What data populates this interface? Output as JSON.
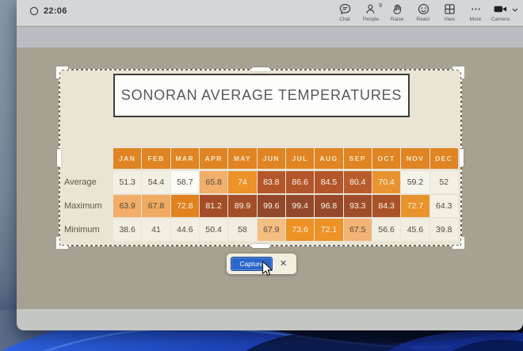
{
  "topbar": {
    "clock": "22:06",
    "controls": [
      {
        "id": "chat",
        "label": "Chat"
      },
      {
        "id": "people",
        "label": "People",
        "badge": "9"
      },
      {
        "id": "raise",
        "label": "Raise"
      },
      {
        "id": "react",
        "label": "React"
      },
      {
        "id": "view",
        "label": "View"
      },
      {
        "id": "more",
        "label": "More"
      },
      {
        "id": "camera",
        "label": "Camera"
      }
    ]
  },
  "slide": {
    "title": "SONORAN AVERAGE TEMPERATURES"
  },
  "table": {
    "header_bg": "#E08424",
    "header_fg": "#F8E8C6",
    "dark_text": "#4E4A40",
    "white_text": "#FBF5E9",
    "months": [
      "JAN",
      "FEB",
      "MAR",
      "APR",
      "MAY",
      "JUN",
      "JUL",
      "AUG",
      "SEP",
      "OCT",
      "NOV",
      "DEC"
    ],
    "rows": [
      {
        "label": "Average",
        "cells": [
          {
            "v": "51.3",
            "bg": "#F3EFE2",
            "t": "d"
          },
          {
            "v": "54.4",
            "bg": "#F3EFE2",
            "t": "d"
          },
          {
            "v": "58.7",
            "bg": "#FCFBF6",
            "t": "d"
          },
          {
            "v": "65.8",
            "bg": "#F2AE6B",
            "t": "d"
          },
          {
            "v": "74",
            "bg": "#EC9227",
            "t": "w"
          },
          {
            "v": "83.8",
            "bg": "#B4572B",
            "t": "w"
          },
          {
            "v": "86.6",
            "bg": "#B3562B",
            "t": "w"
          },
          {
            "v": "84.5",
            "bg": "#B3562B",
            "t": "w"
          },
          {
            "v": "80.4",
            "bg": "#B95C2C",
            "t": "w"
          },
          {
            "v": "70.4",
            "bg": "#E89330",
            "t": "w"
          },
          {
            "v": "59.2",
            "bg": "#F6F3EA",
            "t": "d"
          },
          {
            "v": "52",
            "bg": "#F3EFE2",
            "t": "d"
          }
        ]
      },
      {
        "label": "Maximum",
        "cells": [
          {
            "v": "63.9",
            "bg": "#F2AD68",
            "t": "d"
          },
          {
            "v": "67.8",
            "bg": "#F1AA62",
            "t": "d"
          },
          {
            "v": "72.8",
            "bg": "#E0821D",
            "t": "w"
          },
          {
            "v": "81.2",
            "bg": "#A54D28",
            "t": "w"
          },
          {
            "v": "89.9",
            "bg": "#A14E29",
            "t": "w"
          },
          {
            "v": "99.6",
            "bg": "#92482A",
            "t": "w"
          },
          {
            "v": "99.4",
            "bg": "#92482A",
            "t": "w"
          },
          {
            "v": "96.8",
            "bg": "#96492A",
            "t": "w"
          },
          {
            "v": "93.3",
            "bg": "#9E4D2A",
            "t": "w"
          },
          {
            "v": "84.3",
            "bg": "#A95229",
            "t": "w"
          },
          {
            "v": "72.7",
            "bg": "#E8932C",
            "t": "w"
          },
          {
            "v": "64.3",
            "bg": "#F3EFE2",
            "t": "d"
          }
        ]
      },
      {
        "label": "Minimum",
        "cells": [
          {
            "v": "38.6",
            "bg": "#F2EEE1",
            "t": "d"
          },
          {
            "v": "41",
            "bg": "#F2EEE1",
            "t": "d"
          },
          {
            "v": "44.6",
            "bg": "#F2EEE1",
            "t": "d"
          },
          {
            "v": "50.4",
            "bg": "#F2EEE1",
            "t": "d"
          },
          {
            "v": "58",
            "bg": "#F1EDE0",
            "t": "d"
          },
          {
            "v": "67.9",
            "bg": "#F4BE83",
            "t": "d"
          },
          {
            "v": "73.6",
            "bg": "#ED9125",
            "t": "w"
          },
          {
            "v": "72.1",
            "bg": "#EC9227",
            "t": "w"
          },
          {
            "v": "67.5",
            "bg": "#F3B376",
            "t": "d"
          },
          {
            "v": "56.6",
            "bg": "#F1EDE0",
            "t": "d"
          },
          {
            "v": "45.6",
            "bg": "#F1EDE0",
            "t": "d"
          },
          {
            "v": "39.8",
            "bg": "#F1EDE0",
            "t": "d"
          }
        ]
      }
    ]
  },
  "capture": {
    "button_label": "Capture",
    "close_label": "✕"
  }
}
